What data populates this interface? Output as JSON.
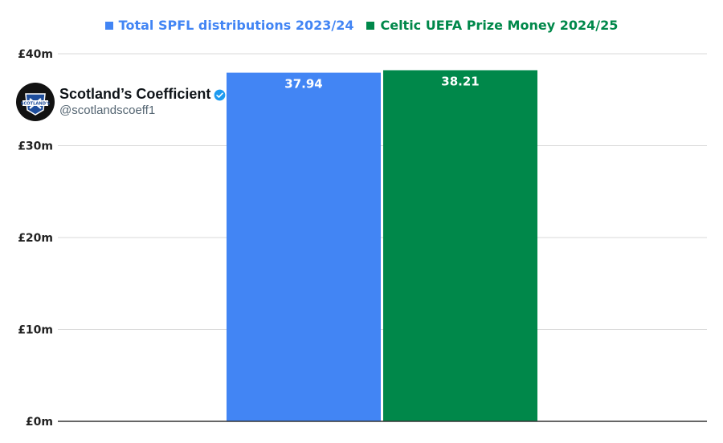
{
  "account": {
    "name": "Scotland’s Coefficient",
    "handle": "@scotlandscoeff1",
    "avatar_text": "SCOTLAND'S"
  },
  "chart_data": {
    "type": "bar",
    "title": "",
    "xlabel": "",
    "ylabel": "",
    "ylim": [
      0,
      40
    ],
    "yticks": [
      0,
      10,
      20,
      30,
      40
    ],
    "ytick_labels": [
      "£0m",
      "£10m",
      "£20m",
      "£30m",
      "£40m"
    ],
    "grid": true,
    "legend_position": "top-center",
    "series": [
      {
        "name": "Total SPFL distributions 2023/24",
        "value": 37.94,
        "label": "37.94",
        "color": "#4285f4"
      },
      {
        "name": "Celtic UEFA Prize Money 2024/25",
        "value": 38.21,
        "label": "38.21",
        "color": "#00884a"
      }
    ]
  }
}
